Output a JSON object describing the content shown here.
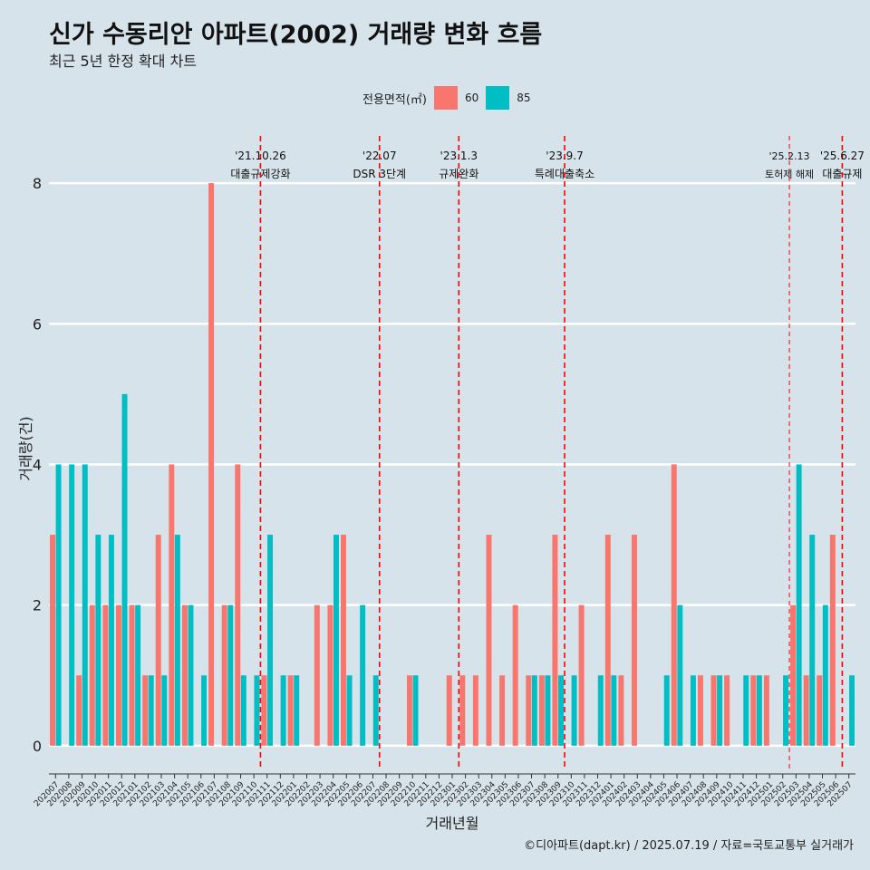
{
  "title": "신가 수동리안 아파트(2002) 거래량 변화 흐름",
  "subtitle": "최근 5년 한정 확대 차트",
  "caption": "©디아파트(dapt.kr) / 2025.07.19 / 자료=국토교통부 실거래가",
  "legend": {
    "title": "전용면적(㎡)",
    "items": [
      {
        "label": "60",
        "color": "#f8766d"
      },
      {
        "label": "85",
        "color": "#00bfc4"
      }
    ]
  },
  "chart_data": {
    "type": "bar",
    "title": "신가 수동리안 아파트(2002) 거래량 변화 흐름",
    "xlabel": "거래년월",
    "ylabel": "거래량(건)",
    "ylim": [
      -0.35,
      8.8
    ],
    "yticks": [
      0,
      2,
      4,
      6,
      8
    ],
    "categories": [
      "202007",
      "202008",
      "202009",
      "202010",
      "202011",
      "202012",
      "202101",
      "202102",
      "202103",
      "202104",
      "202105",
      "202106",
      "202107",
      "202108",
      "202109",
      "202110",
      "202111",
      "202112",
      "202201",
      "202202",
      "202203",
      "202204",
      "202205",
      "202206",
      "202207",
      "202208",
      "202209",
      "202210",
      "202211",
      "202212",
      "202301",
      "202302",
      "202303",
      "202304",
      "202305",
      "202306",
      "202307",
      "202308",
      "202309",
      "202310",
      "202311",
      "202312",
      "202401",
      "202402",
      "202403",
      "202404",
      "202405",
      "202406",
      "202407",
      "202408",
      "202409",
      "202410",
      "202411",
      "202412",
      "202501",
      "202502",
      "202503",
      "202504",
      "202505",
      "202506",
      "202507"
    ],
    "series": [
      {
        "name": "60",
        "color": "#f8766d",
        "values": [
          3,
          0,
          1,
          2,
          2,
          2,
          2,
          1,
          3,
          4,
          2,
          0,
          8,
          2,
          4,
          0,
          1,
          0,
          1,
          0,
          2,
          2,
          3,
          0,
          0,
          0,
          0,
          1,
          0,
          0,
          1,
          1,
          1,
          3,
          1,
          2,
          1,
          1,
          3,
          0,
          2,
          0,
          3,
          1,
          3,
          0,
          0,
          4,
          0,
          1,
          1,
          1,
          0,
          1,
          1,
          0,
          2,
          1,
          1,
          3,
          0
        ]
      },
      {
        "name": "85",
        "color": "#00bfc4",
        "values": [
          4,
          4,
          4,
          3,
          3,
          5,
          2,
          1,
          1,
          3,
          2,
          1,
          0,
          2,
          1,
          1,
          3,
          1,
          1,
          0,
          0,
          3,
          1,
          2,
          1,
          0,
          0,
          1,
          0,
          0,
          0,
          0,
          0,
          0,
          0,
          0,
          1,
          1,
          1,
          1,
          0,
          1,
          1,
          0,
          0,
          0,
          1,
          2,
          1,
          0,
          1,
          0,
          1,
          1,
          0,
          1,
          4,
          3,
          2,
          0,
          1
        ]
      }
    ],
    "events": [
      {
        "date": "'21.10.26",
        "label": "대출규제강화",
        "after": "202110",
        "style": "dashed"
      },
      {
        "date": "'22.07",
        "label": "DSR 3단계",
        "after": "202207",
        "style": "dashed"
      },
      {
        "date": "'23.1.3",
        "label": "규제완화",
        "after": "202301",
        "style": "dashed"
      },
      {
        "date": "'23.9.7",
        "label": "특례대출축소",
        "after": "202309",
        "style": "dashed"
      },
      {
        "date": "'25.2.13",
        "label": "토허제 해제",
        "after": "202502",
        "style": "thin-dashed"
      },
      {
        "date": "'25.6.27",
        "label": "대출규제",
        "after": "202506",
        "style": "dashed"
      }
    ]
  }
}
